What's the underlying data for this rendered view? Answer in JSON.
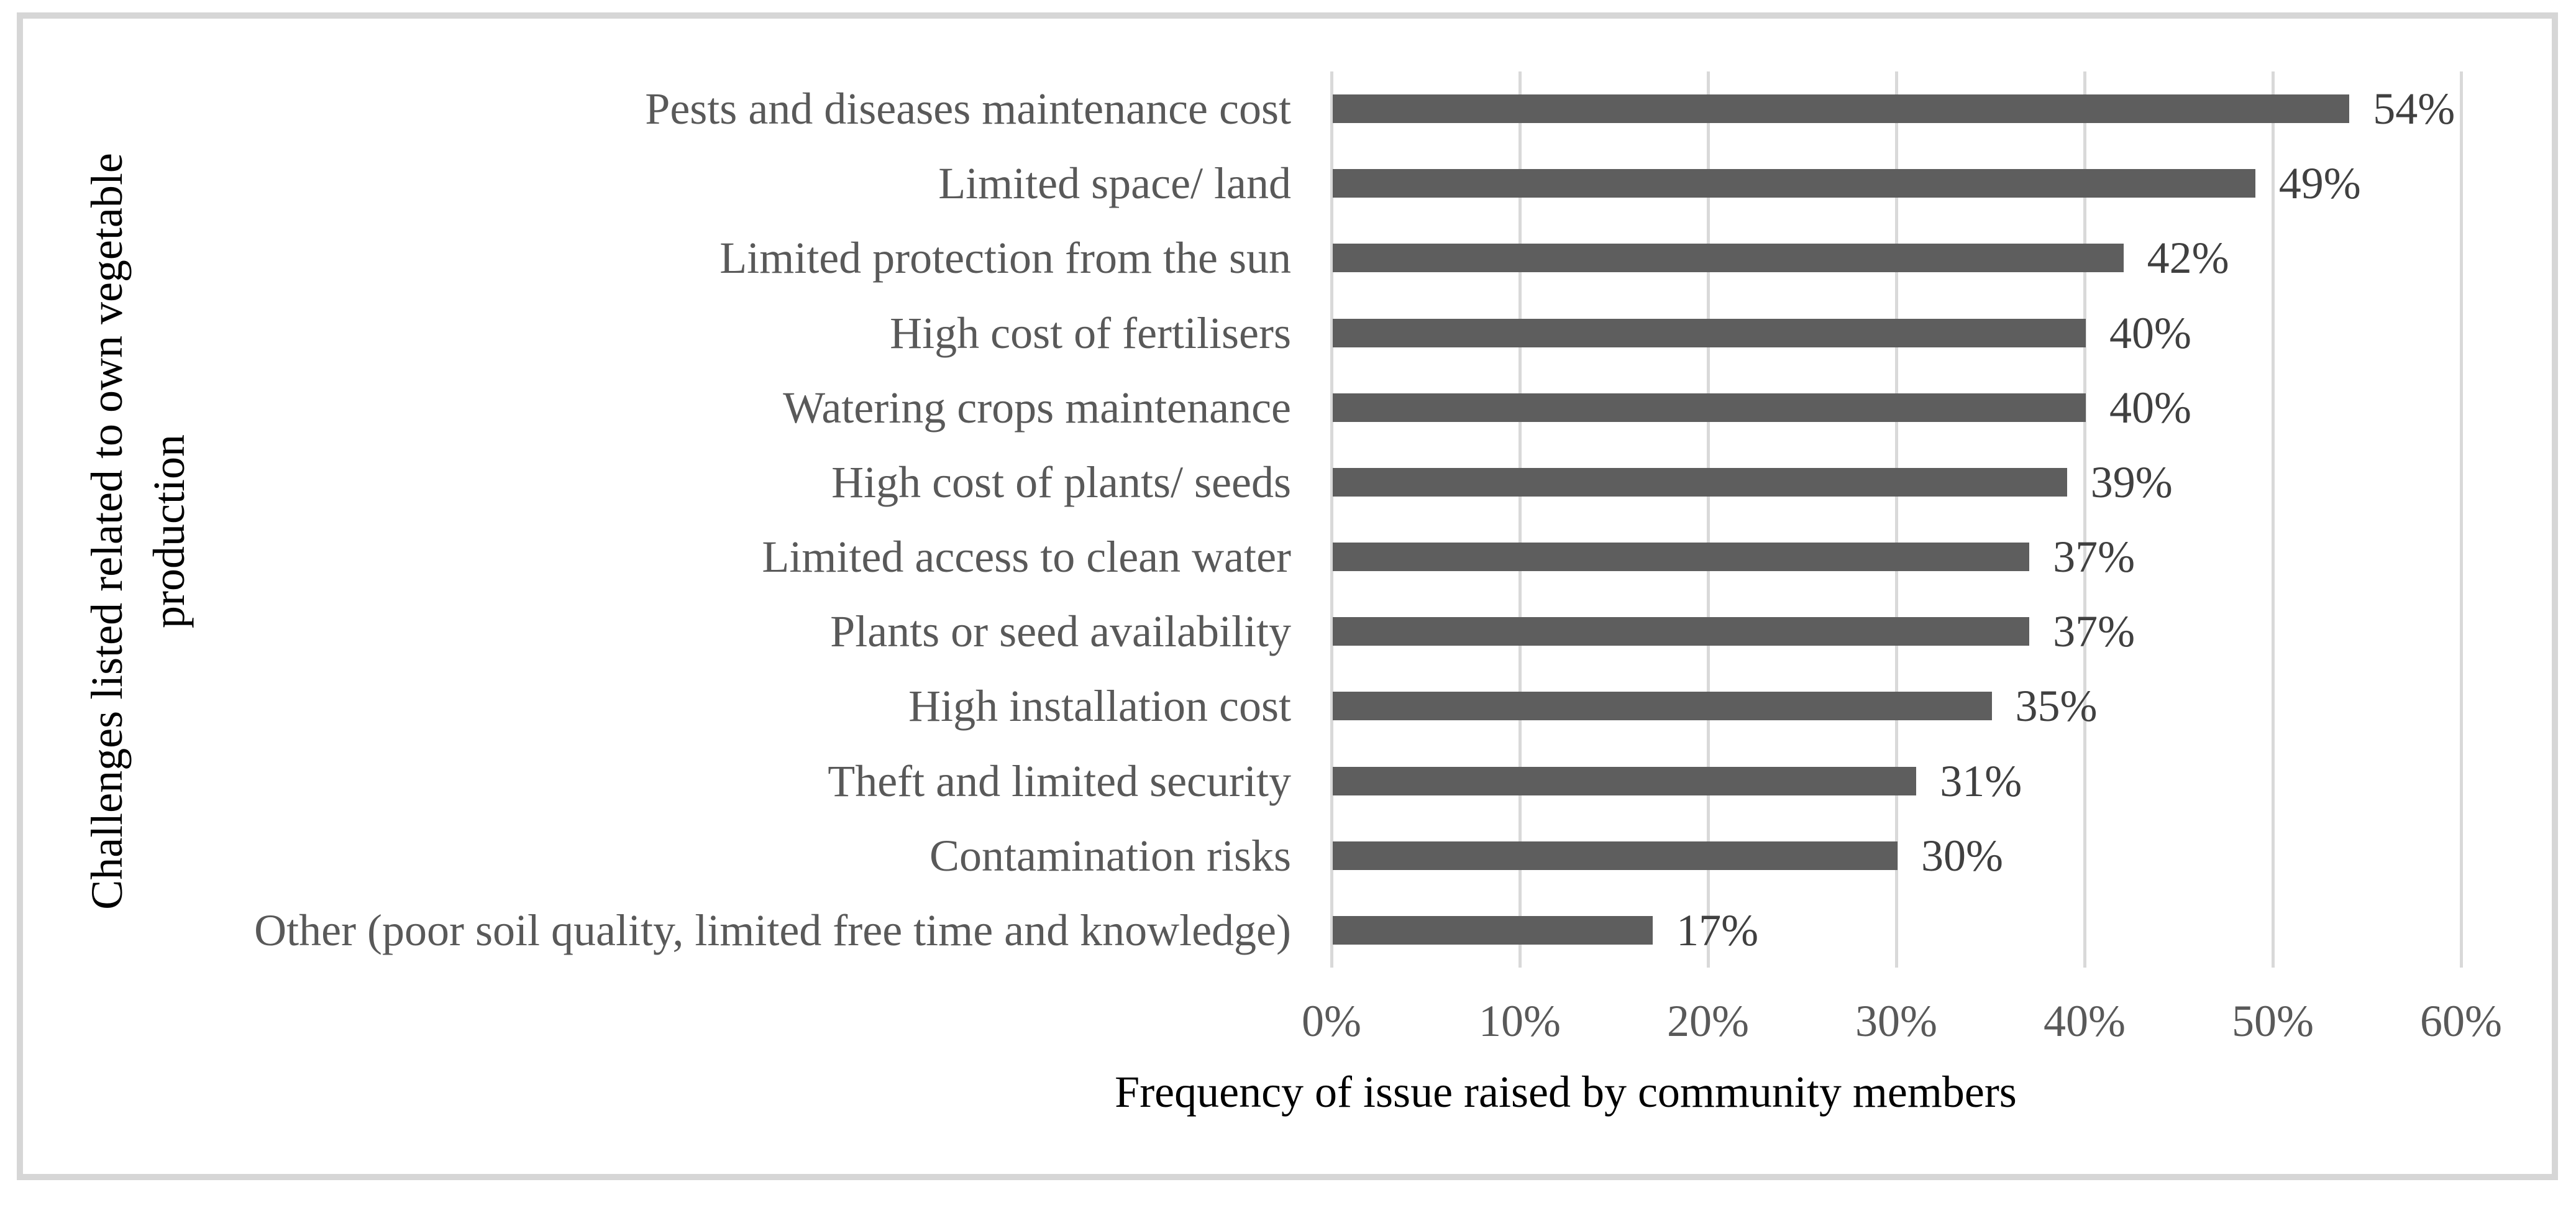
{
  "chart_data": {
    "type": "bar",
    "orientation": "horizontal",
    "title": "",
    "xlabel": "Frequency of issue raised by community members",
    "ylabel": "Challenges listed related to own vegetable production",
    "categories": [
      "Pests and diseases maintenance cost",
      "Limited space/ land",
      "Limited protection from the sun",
      "High cost of fertilisers",
      "Watering crops maintenance",
      "High cost of plants/ seeds",
      "Limited access to clean water",
      "Plants or seed availability",
      "High installation cost",
      "Theft and limited security",
      "Contamination risks",
      "Other (poor soil quality, limited free time and knowledge)"
    ],
    "values": [
      54,
      49,
      42,
      40,
      40,
      39,
      37,
      37,
      35,
      31,
      30,
      17
    ],
    "value_labels": [
      "54%",
      "49%",
      "42%",
      "40%",
      "40%",
      "39%",
      "37%",
      "37%",
      "35%",
      "31%",
      "30%",
      "17%"
    ],
    "x_ticks": [
      "0%",
      "10%",
      "20%",
      "30%",
      "40%",
      "50%",
      "60%"
    ],
    "x_tick_values": [
      0,
      10,
      20,
      30,
      40,
      50,
      60
    ],
    "xlim": [
      0,
      60
    ],
    "grid": "vertical",
    "legend": false,
    "colors": {
      "bar": "#5e5e5e",
      "gridline": "#d9d9d9",
      "axis_text": "#595959",
      "value_label": "#404040",
      "frame_border": "#d6d6d6",
      "background": "#ffffff"
    }
  }
}
